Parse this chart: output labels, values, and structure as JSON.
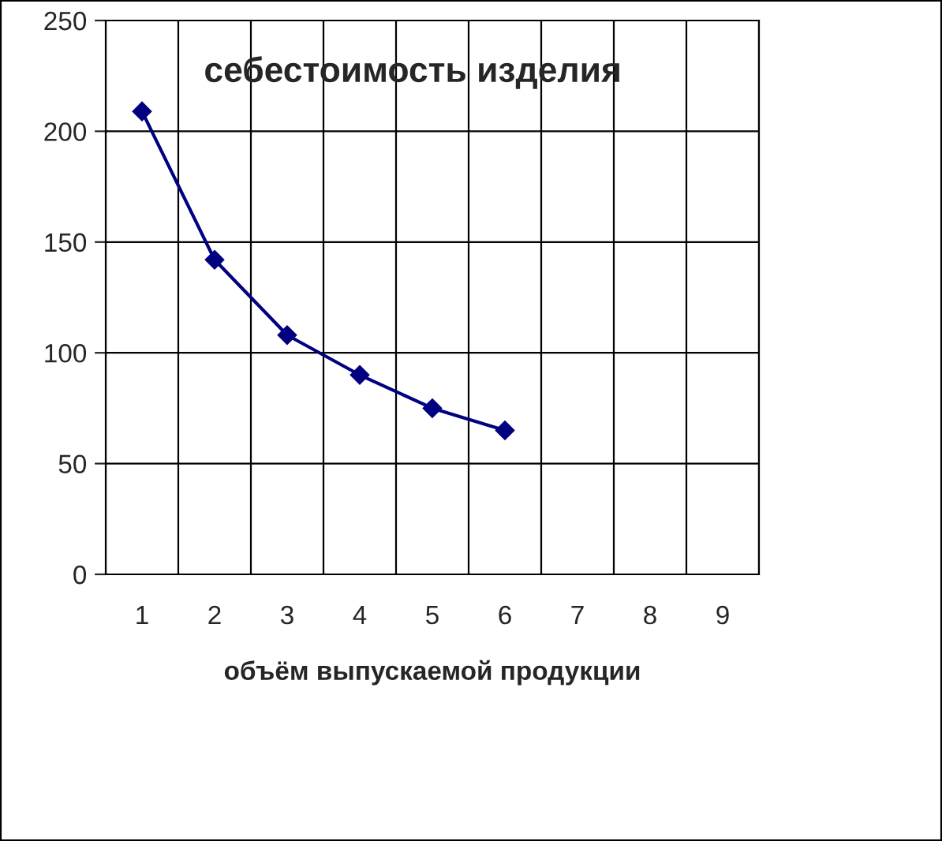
{
  "chart_data": {
    "type": "line",
    "title": "себестоимость изделия",
    "xlabel": "объём выпускаемой продукции",
    "categories": [
      "1",
      "2",
      "3",
      "4",
      "5",
      "6",
      "7",
      "8",
      "9"
    ],
    "series": [
      {
        "color": "#000080",
        "values": [
          209,
          142,
          108,
          90,
          75,
          65,
          null,
          null,
          null
        ]
      }
    ],
    "ylim": [
      0,
      250
    ],
    "yticks": [
      0,
      50,
      100,
      150,
      200,
      250
    ],
    "grid": true,
    "marker": "diamond",
    "line_style": "solid"
  }
}
